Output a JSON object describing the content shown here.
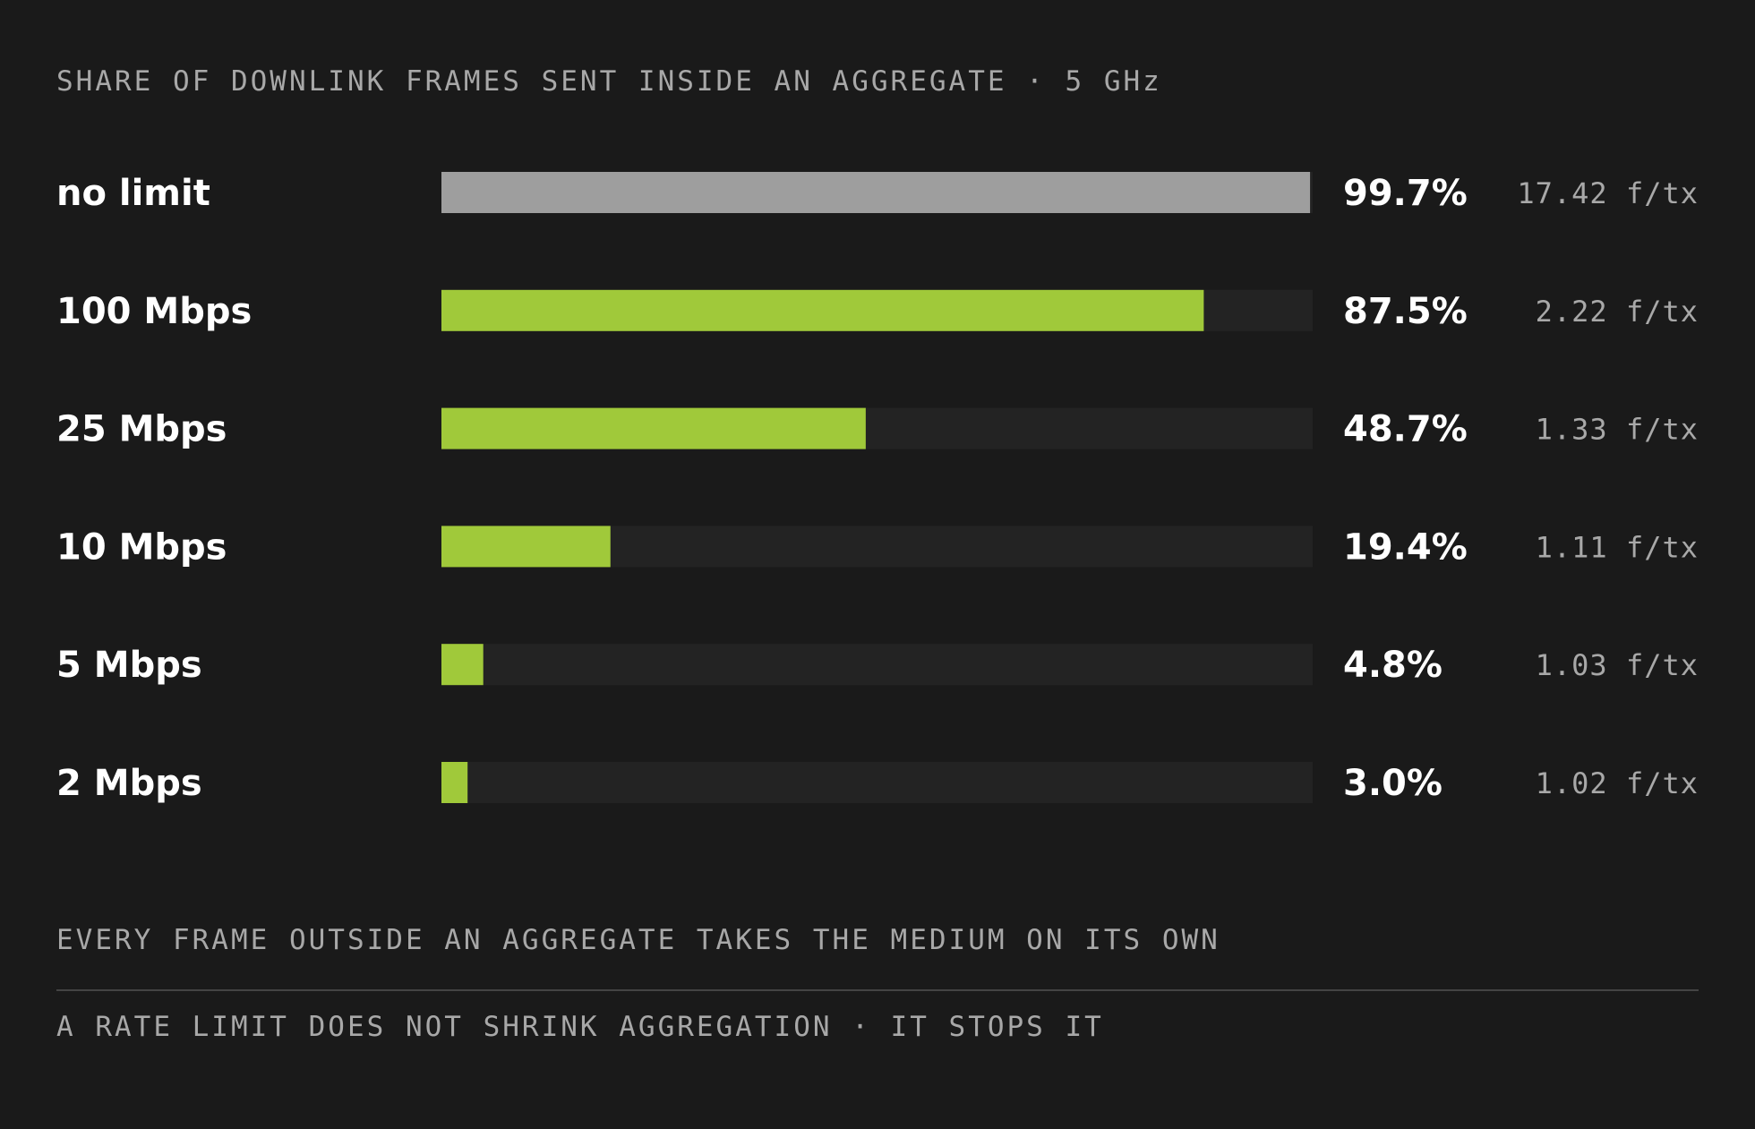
{
  "chart_data": {
    "type": "bar",
    "orientation": "horizontal",
    "title": "SHARE OF DOWNLINK FRAMES SENT INSIDE AN AGGREGATE · 5 GHz",
    "categories": [
      "no limit",
      "100 Mbps",
      "25 Mbps",
      "10 Mbps",
      "5 Mbps",
      "2 Mbps"
    ],
    "values": [
      99.7,
      87.5,
      48.7,
      19.4,
      4.8,
      3.0
    ],
    "value_labels": [
      "99.7%",
      "87.5%",
      "48.7%",
      "19.4%",
      "4.8%",
      "3.0%"
    ],
    "secondary_labels": [
      "17.42 f/tx",
      "2.22 f/tx",
      "1.33 f/tx",
      "1.11 f/tx",
      "1.03 f/tx",
      "1.02 f/tx"
    ],
    "xlim": [
      0,
      100
    ],
    "grid": false,
    "colors": {
      "background": "#1a1a1a",
      "track": "#232323",
      "baseline_bar": "#9e9e9e",
      "accent_bar": "#a0c93a",
      "label_text": "#ffffff",
      "muted_text": "#a8a8a8",
      "divider": "#444444"
    }
  },
  "footer": {
    "line1": "EVERY FRAME OUTSIDE AN AGGREGATE TAKES THE MEDIUM ON ITS OWN",
    "line2": "A RATE LIMIT DOES NOT SHRINK AGGREGATION · IT STOPS IT"
  }
}
